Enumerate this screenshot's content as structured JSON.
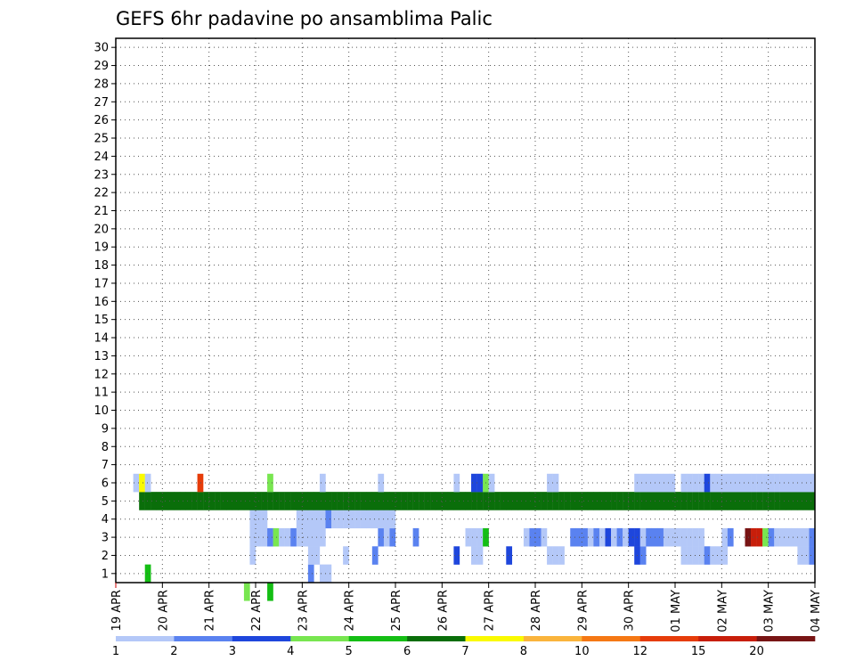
{
  "chart_data": {
    "type": "heatmap",
    "title": "GEFS 6hr padavine po ansamblima Palic",
    "xlabel": "",
    "ylabel": "",
    "x_tick_labels": [
      "19 APR",
      "20 APR",
      "21 APR",
      "22 APR",
      "23 APR",
      "24 APR",
      "25 APR",
      "26 APR",
      "27 APR",
      "28 APR",
      "29 APR",
      "30 APR",
      "01 MAY",
      "02 MAY",
      "03 MAY",
      "04 MAY"
    ],
    "y_tick_labels": [
      "1",
      "2",
      "3",
      "4",
      "5",
      "6",
      "7",
      "8",
      "9",
      "10",
      "11",
      "12",
      "13",
      "14",
      "15",
      "16",
      "17",
      "18",
      "19",
      "20",
      "21",
      "22",
      "23",
      "24",
      "25",
      "26",
      "27",
      "28",
      "29",
      "30"
    ],
    "xlim": [
      0,
      60
    ],
    "ylim": [
      0.5,
      30.5
    ],
    "grid": true,
    "legend": "bottom colorbar",
    "colorbar": {
      "labels": [
        "1",
        "2",
        "3",
        "4",
        "5",
        "6",
        "7",
        "8",
        "10",
        "12",
        "15",
        "20"
      ],
      "colors": [
        "#b4c8f8",
        "#5a82f0",
        "#1e46dc",
        "#78e650",
        "#14be14",
        "#0a6e0a",
        "#fafa00",
        "#fab43c",
        "#f57814",
        "#e63c0a",
        "#c81e0a",
        "#781414"
      ]
    },
    "cells": [
      [
        5,
        1,
        4
      ],
      [
        22,
        0,
        3
      ],
      [
        26,
        0,
        4
      ],
      [
        33,
        1,
        1
      ],
      [
        35,
        1,
        0
      ],
      [
        36,
        1,
        0
      ],
      [
        23,
        2,
        0
      ],
      [
        33,
        2,
        0
      ],
      [
        34,
        2,
        0
      ],
      [
        39,
        2,
        0
      ],
      [
        44,
        2,
        1
      ],
      [
        58,
        2,
        2
      ],
      [
        61,
        2,
        0
      ],
      [
        62,
        2,
        0
      ],
      [
        67,
        2,
        2
      ],
      [
        74,
        2,
        0
      ],
      [
        75,
        2,
        0
      ],
      [
        76,
        2,
        0
      ],
      [
        89,
        2,
        2
      ],
      [
        90,
        2,
        1
      ],
      [
        97,
        2,
        0
      ],
      [
        98,
        2,
        0
      ],
      [
        99,
        2,
        0
      ],
      [
        100,
        2,
        0
      ],
      [
        101,
        2,
        1
      ],
      [
        102,
        2,
        0
      ],
      [
        103,
        2,
        0
      ],
      [
        104,
        2,
        0
      ],
      [
        117,
        2,
        0
      ],
      [
        118,
        2,
        0
      ],
      [
        119,
        2,
        1
      ],
      [
        23,
        3,
        0
      ],
      [
        24,
        3,
        0
      ],
      [
        25,
        3,
        0
      ],
      [
        26,
        3,
        1
      ],
      [
        27,
        3,
        3
      ],
      [
        28,
        3,
        0
      ],
      [
        29,
        3,
        0
      ],
      [
        30,
        3,
        1
      ],
      [
        31,
        3,
        0
      ],
      [
        32,
        3,
        0
      ],
      [
        33,
        3,
        0
      ],
      [
        34,
        3,
        0
      ],
      [
        35,
        3,
        0
      ],
      [
        45,
        3,
        1
      ],
      [
        46,
        3,
        0
      ],
      [
        47,
        3,
        1
      ],
      [
        51,
        3,
        1
      ],
      [
        60,
        3,
        0
      ],
      [
        61,
        3,
        0
      ],
      [
        62,
        3,
        0
      ],
      [
        63,
        3,
        4
      ],
      [
        70,
        3,
        0
      ],
      [
        71,
        3,
        1
      ],
      [
        72,
        3,
        1
      ],
      [
        73,
        3,
        0
      ],
      [
        78,
        3,
        1
      ],
      [
        79,
        3,
        1
      ],
      [
        80,
        3,
        1
      ],
      [
        81,
        3,
        0
      ],
      [
        82,
        3,
        1
      ],
      [
        83,
        3,
        0
      ],
      [
        84,
        3,
        2
      ],
      [
        85,
        3,
        0
      ],
      [
        86,
        3,
        1
      ],
      [
        87,
        3,
        0
      ],
      [
        88,
        3,
        2
      ],
      [
        89,
        3,
        2
      ],
      [
        90,
        3,
        0
      ],
      [
        91,
        3,
        1
      ],
      [
        92,
        3,
        1
      ],
      [
        93,
        3,
        1
      ],
      [
        94,
        3,
        0
      ],
      [
        95,
        3,
        0
      ],
      [
        96,
        3,
        0
      ],
      [
        97,
        3,
        0
      ],
      [
        98,
        3,
        0
      ],
      [
        99,
        3,
        0
      ],
      [
        100,
        3,
        0
      ],
      [
        104,
        3,
        0
      ],
      [
        105,
        3,
        1
      ],
      [
        108,
        3,
        11
      ],
      [
        109,
        3,
        10
      ],
      [
        110,
        3,
        10
      ],
      [
        111,
        3,
        3
      ],
      [
        112,
        3,
        1
      ],
      [
        113,
        3,
        0
      ],
      [
        114,
        3,
        0
      ],
      [
        115,
        3,
        0
      ],
      [
        116,
        3,
        0
      ],
      [
        117,
        3,
        0
      ],
      [
        118,
        3,
        0
      ],
      [
        119,
        3,
        1
      ],
      [
        23,
        4,
        0
      ],
      [
        24,
        4,
        0
      ],
      [
        25,
        4,
        0
      ],
      [
        31,
        4,
        0
      ],
      [
        32,
        4,
        0
      ],
      [
        33,
        4,
        0
      ],
      [
        34,
        4,
        0
      ],
      [
        35,
        4,
        0
      ],
      [
        36,
        4,
        1
      ],
      [
        37,
        4,
        0
      ],
      [
        38,
        4,
        0
      ],
      [
        39,
        4,
        0
      ],
      [
        40,
        4,
        0
      ],
      [
        41,
        4,
        0
      ],
      [
        42,
        4,
        0
      ],
      [
        43,
        4,
        0
      ],
      [
        44,
        4,
        0
      ],
      [
        45,
        4,
        0
      ],
      [
        46,
        4,
        0
      ],
      [
        47,
        4,
        0
      ],
      [
        4,
        5,
        5
      ],
      [
        5,
        5,
        5
      ],
      [
        6,
        5,
        5
      ],
      [
        7,
        5,
        5
      ],
      [
        8,
        5,
        5
      ],
      [
        9,
        5,
        5
      ],
      [
        10,
        5,
        5
      ],
      [
        11,
        5,
        5
      ],
      [
        12,
        5,
        5
      ],
      [
        13,
        5,
        5
      ],
      [
        14,
        5,
        5
      ],
      [
        15,
        5,
        5
      ],
      [
        16,
        5,
        5
      ],
      [
        17,
        5,
        5
      ],
      [
        18,
        5,
        5
      ],
      [
        19,
        5,
        5
      ],
      [
        20,
        5,
        5
      ],
      [
        21,
        5,
        5
      ],
      [
        22,
        5,
        5
      ],
      [
        23,
        5,
        5
      ],
      [
        24,
        5,
        5
      ],
      [
        25,
        5,
        5
      ],
      [
        26,
        5,
        5
      ],
      [
        27,
        5,
        5
      ],
      [
        28,
        5,
        5
      ],
      [
        29,
        5,
        5
      ],
      [
        30,
        5,
        5
      ],
      [
        31,
        5,
        5
      ],
      [
        32,
        5,
        5
      ],
      [
        33,
        5,
        5
      ],
      [
        34,
        5,
        5
      ],
      [
        35,
        5,
        5
      ],
      [
        36,
        5,
        5
      ],
      [
        37,
        5,
        5
      ],
      [
        38,
        5,
        5
      ],
      [
        39,
        5,
        5
      ],
      [
        40,
        5,
        5
      ],
      [
        41,
        5,
        5
      ],
      [
        42,
        5,
        5
      ],
      [
        43,
        5,
        5
      ],
      [
        44,
        5,
        5
      ],
      [
        45,
        5,
        5
      ],
      [
        46,
        5,
        5
      ],
      [
        47,
        5,
        5
      ],
      [
        48,
        5,
        5
      ],
      [
        49,
        5,
        5
      ],
      [
        50,
        5,
        5
      ],
      [
        51,
        5,
        5
      ],
      [
        52,
        5,
        5
      ],
      [
        53,
        5,
        5
      ],
      [
        54,
        5,
        5
      ],
      [
        55,
        5,
        5
      ],
      [
        56,
        5,
        5
      ],
      [
        57,
        5,
        5
      ],
      [
        58,
        5,
        5
      ],
      [
        59,
        5,
        5
      ],
      [
        60,
        5,
        5
      ],
      [
        61,
        5,
        5
      ],
      [
        62,
        5,
        5
      ],
      [
        63,
        5,
        5
      ],
      [
        64,
        5,
        5
      ],
      [
        65,
        5,
        5
      ],
      [
        66,
        5,
        5
      ],
      [
        67,
        5,
        5
      ],
      [
        68,
        5,
        5
      ],
      [
        69,
        5,
        5
      ],
      [
        70,
        5,
        5
      ],
      [
        71,
        5,
        5
      ],
      [
        72,
        5,
        5
      ],
      [
        73,
        5,
        5
      ],
      [
        74,
        5,
        5
      ],
      [
        75,
        5,
        5
      ],
      [
        76,
        5,
        5
      ],
      [
        77,
        5,
        5
      ],
      [
        78,
        5,
        5
      ],
      [
        79,
        5,
        5
      ],
      [
        80,
        5,
        5
      ],
      [
        81,
        5,
        5
      ],
      [
        82,
        5,
        5
      ],
      [
        83,
        5,
        5
      ],
      [
        84,
        5,
        5
      ],
      [
        85,
        5,
        5
      ],
      [
        86,
        5,
        5
      ],
      [
        87,
        5,
        5
      ],
      [
        88,
        5,
        5
      ],
      [
        89,
        5,
        5
      ],
      [
        90,
        5,
        5
      ],
      [
        91,
        5,
        5
      ],
      [
        92,
        5,
        5
      ],
      [
        93,
        5,
        5
      ],
      [
        94,
        5,
        5
      ],
      [
        95,
        5,
        5
      ],
      [
        96,
        5,
        5
      ],
      [
        97,
        5,
        5
      ],
      [
        98,
        5,
        5
      ],
      [
        99,
        5,
        5
      ],
      [
        100,
        5,
        5
      ],
      [
        101,
        5,
        5
      ],
      [
        102,
        5,
        5
      ],
      [
        103,
        5,
        5
      ],
      [
        104,
        5,
        5
      ],
      [
        105,
        5,
        5
      ],
      [
        106,
        5,
        5
      ],
      [
        107,
        5,
        5
      ],
      [
        108,
        5,
        5
      ],
      [
        109,
        5,
        5
      ],
      [
        110,
        5,
        5
      ],
      [
        111,
        5,
        5
      ],
      [
        112,
        5,
        5
      ],
      [
        113,
        5,
        5
      ],
      [
        114,
        5,
        5
      ],
      [
        115,
        5,
        5
      ],
      [
        116,
        5,
        5
      ],
      [
        117,
        5,
        5
      ],
      [
        118,
        5,
        5
      ],
      [
        119,
        5,
        5
      ],
      [
        3,
        6,
        0
      ],
      [
        4,
        6,
        6
      ],
      [
        5,
        6,
        0
      ],
      [
        14,
        6,
        9
      ],
      [
        26,
        6,
        3
      ],
      [
        35,
        6,
        0
      ],
      [
        45,
        6,
        0
      ],
      [
        58,
        6,
        0
      ],
      [
        61,
        6,
        2
      ],
      [
        62,
        6,
        2
      ],
      [
        63,
        6,
        3
      ],
      [
        64,
        6,
        0
      ],
      [
        74,
        6,
        0
      ],
      [
        75,
        6,
        0
      ],
      [
        89,
        6,
        0
      ],
      [
        90,
        6,
        0
      ],
      [
        91,
        6,
        0
      ],
      [
        92,
        6,
        0
      ],
      [
        93,
        6,
        0
      ],
      [
        94,
        6,
        0
      ],
      [
        95,
        6,
        0
      ],
      [
        97,
        6,
        0
      ],
      [
        98,
        6,
        0
      ],
      [
        99,
        6,
        0
      ],
      [
        100,
        6,
        0
      ],
      [
        101,
        6,
        2
      ],
      [
        102,
        6,
        0
      ],
      [
        103,
        6,
        0
      ],
      [
        104,
        6,
        0
      ],
      [
        105,
        6,
        0
      ],
      [
        106,
        6,
        0
      ],
      [
        107,
        6,
        0
      ],
      [
        108,
        6,
        0
      ],
      [
        109,
        6,
        0
      ],
      [
        110,
        6,
        0
      ],
      [
        111,
        6,
        0
      ],
      [
        112,
        6,
        0
      ],
      [
        113,
        6,
        0
      ],
      [
        114,
        6,
        0
      ],
      [
        115,
        6,
        0
      ],
      [
        116,
        6,
        0
      ],
      [
        117,
        6,
        0
      ],
      [
        118,
        6,
        0
      ],
      [
        119,
        6,
        0
      ]
    ]
  }
}
